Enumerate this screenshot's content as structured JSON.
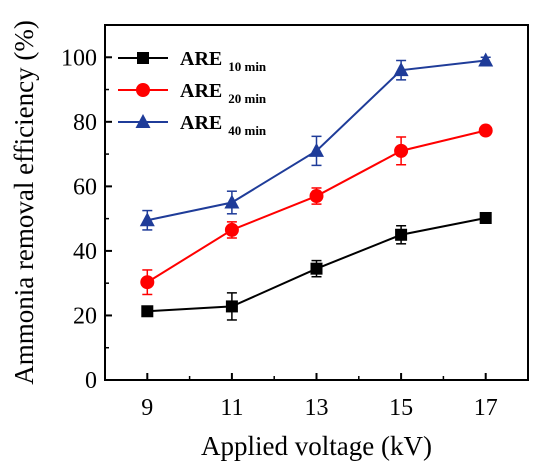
{
  "chart_data": {
    "type": "line",
    "xlabel": "Applied voltage (kV)",
    "ylabel": "Ammonia removal efficiency (%)",
    "x": [
      9,
      11,
      13,
      15,
      17
    ],
    "xlim": [
      8,
      18
    ],
    "ylim": [
      0,
      110
    ],
    "xticks": [
      "9",
      "11",
      "13",
      "15",
      "17"
    ],
    "yticks": [
      "0",
      "20",
      "40",
      "60",
      "80",
      "100"
    ],
    "legend_position": "top-left",
    "series": [
      {
        "name": "ARE",
        "name_sub": "10 min",
        "color": "#000000",
        "marker": "square",
        "values": [
          21.3,
          22.8,
          34.5,
          45.0,
          50.2
        ],
        "errors": [
          1.0,
          4.2,
          2.5,
          2.8,
          1.2
        ]
      },
      {
        "name": "ARE",
        "name_sub": "20 min",
        "color": "#ff0000",
        "marker": "circle",
        "values": [
          30.3,
          46.5,
          57.0,
          71.0,
          77.3
        ],
        "errors": [
          3.8,
          2.5,
          2.5,
          4.3,
          1.2
        ]
      },
      {
        "name": "ARE",
        "name_sub": "40 min",
        "color": "#1f3c99",
        "marker": "triangle",
        "values": [
          49.5,
          55.0,
          71.0,
          96.0,
          99.0
        ],
        "errors": [
          3.0,
          3.5,
          4.5,
          3.0,
          1.0
        ]
      }
    ]
  }
}
